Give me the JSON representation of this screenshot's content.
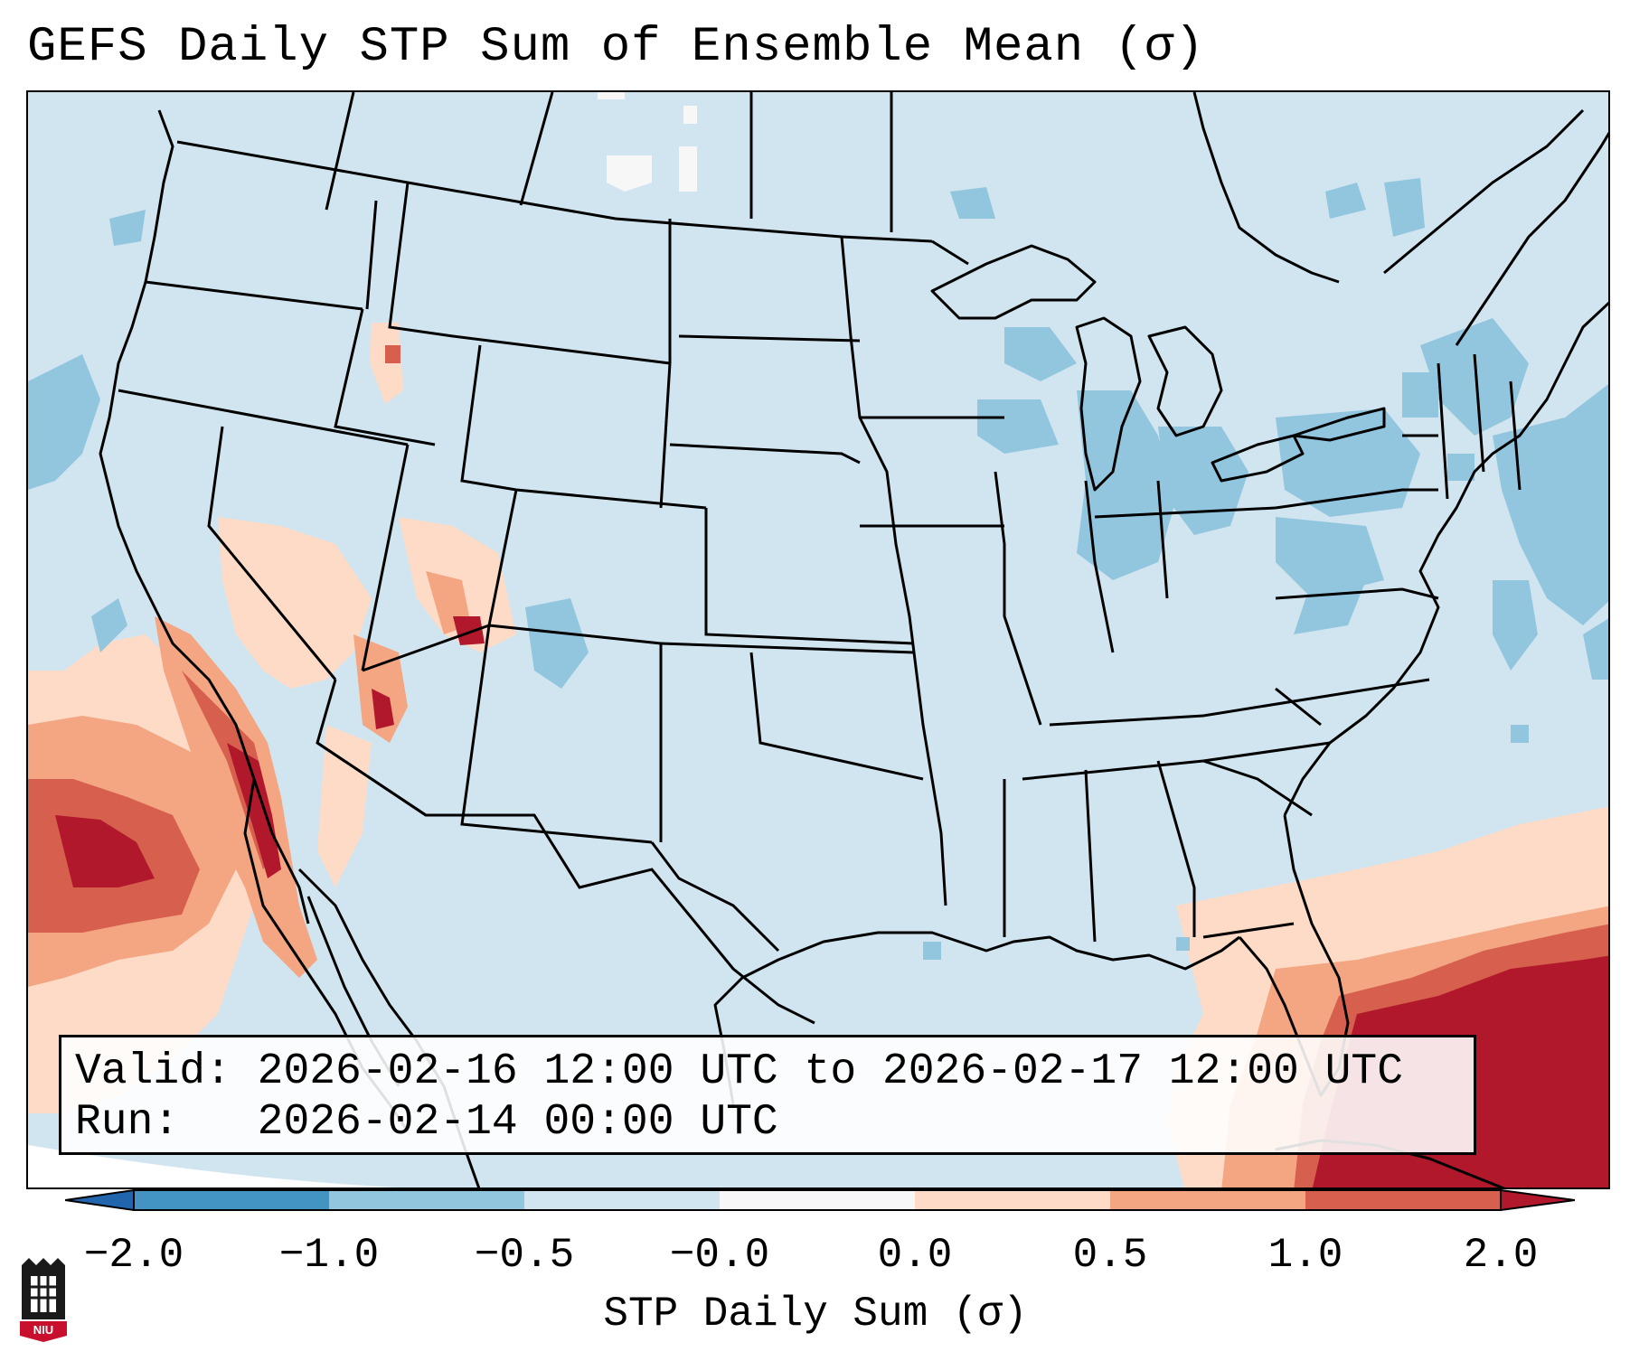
{
  "title": "GEFS Daily STP Sum of Ensemble Mean (σ)",
  "info": {
    "valid_line": "Valid: 2026-02-16 12:00 UTC to 2026-02-17 12:00 UTC",
    "run_line": "Run:   2026-02-14 00:00 UTC"
  },
  "colorbar": {
    "label": "STP Daily Sum (σ)",
    "ticks": [
      "−2.0",
      "−1.0",
      "−0.5",
      "−0.0",
      "0.0",
      "0.5",
      "1.0",
      "2.0"
    ],
    "colors": [
      "#4393c3",
      "#92c5de",
      "#d1e5f0",
      "#f7f7f7",
      "#fddbc7",
      "#f4a582",
      "#d6604d",
      "#b2182b"
    ],
    "extend_low_color": "#2166ac",
    "extend_high_color": "#b2182b"
  },
  "map": {
    "background_color": "#d1e5f0",
    "features": [
      "coastlines",
      "us-state-borders",
      "canada-province-borders",
      "mexico-border"
    ]
  },
  "logo": {
    "text": "NIU"
  }
}
